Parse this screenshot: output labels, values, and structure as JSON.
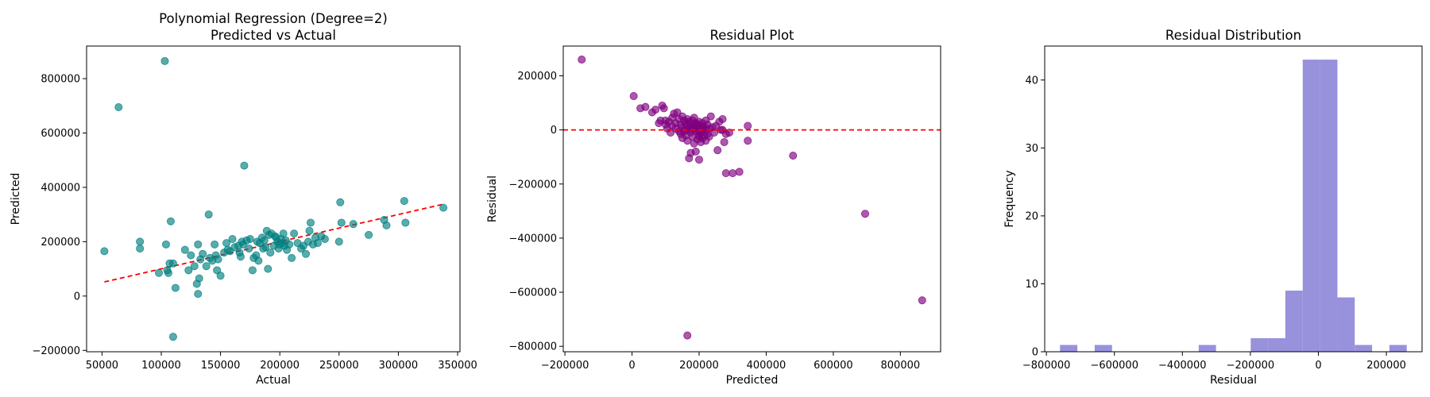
{
  "chart_data": [
    {
      "type": "scatter",
      "title": [
        "Polynomial Regression (Degree=2)",
        "Predicted vs Actual"
      ],
      "xlabel": "Actual",
      "ylabel": "Predicted",
      "xlim": [
        37000,
        352000
      ],
      "ylim": [
        -205000,
        920000
      ],
      "xticks": [
        50000,
        100000,
        150000,
        200000,
        250000,
        300000,
        350000
      ],
      "xtick_labels": [
        "50000",
        "100000",
        "150000",
        "200000",
        "250000",
        "300000",
        "350000"
      ],
      "yticks": [
        -200000,
        0,
        200000,
        400000,
        600000,
        800000
      ],
      "ytick_labels": [
        "−200000",
        "0",
        "200000",
        "400000",
        "600000",
        "800000"
      ],
      "grid": false,
      "colors": {
        "points": "#008080",
        "reference_line": "#ff0000"
      },
      "reference_line": {
        "x": [
          52000,
          337000
        ],
        "y": [
          52000,
          337000
        ]
      },
      "points": {
        "x": [
          52000,
          64000,
          82000,
          82000,
          98000,
          103000,
          104000,
          105000,
          106000,
          107000,
          108000,
          110000,
          110000,
          112000,
          120000,
          123000,
          125000,
          128000,
          130000,
          131000,
          131000,
          132000,
          133000,
          135000,
          138000,
          140000,
          141000,
          143000,
          145000,
          146000,
          147000,
          148000,
          150000,
          153000,
          155000,
          156000,
          158000,
          160000,
          162000,
          165000,
          166000,
          167000,
          168000,
          169000,
          170000,
          172000,
          174000,
          175000,
          177000,
          178000,
          180000,
          181000,
          182000,
          183000,
          185000,
          186000,
          187000,
          188000,
          189000,
          190000,
          191000,
          192000,
          193000,
          195000,
          196000,
          197000,
          198000,
          199000,
          200000,
          201000,
          202000,
          203000,
          204000,
          205000,
          206000,
          208000,
          210000,
          212000,
          215000,
          218000,
          220000,
          222000,
          224000,
          225000,
          226000,
          228000,
          230000,
          232000,
          235000,
          238000,
          250000,
          251000,
          252000,
          262000,
          275000,
          288000,
          290000,
          305000,
          306000,
          338000
        ],
        "y": [
          165000,
          695000,
          200000,
          175000,
          85000,
          865000,
          190000,
          95000,
          85000,
          120000,
          275000,
          -150000,
          120000,
          30000,
          170000,
          95000,
          150000,
          110000,
          45000,
          8000,
          190000,
          65000,
          135000,
          155000,
          110000,
          300000,
          140000,
          130000,
          190000,
          150000,
          95000,
          135000,
          75000,
          160000,
          195000,
          170000,
          165000,
          210000,
          180000,
          185000,
          160000,
          145000,
          200000,
          190000,
          480000,
          205000,
          175000,
          210000,
          95000,
          140000,
          150000,
          200000,
          130000,
          195000,
          215000,
          175000,
          205000,
          180000,
          240000,
          100000,
          225000,
          160000,
          230000,
          185000,
          220000,
          215000,
          200000,
          175000,
          190000,
          210000,
          195000,
          230000,
          185000,
          205000,
          170000,
          190000,
          140000,
          230000,
          195000,
          175000,
          185000,
          155000,
          200000,
          240000,
          270000,
          190000,
          215000,
          195000,
          220000,
          210000,
          200000,
          345000,
          270000,
          265000,
          225000,
          280000,
          260000,
          350000,
          270000,
          325000
        ]
      }
    },
    {
      "type": "scatter",
      "title": "Residual Plot",
      "xlabel": "Predicted",
      "ylabel": "Residual",
      "xlim": [
        -205000,
        920000
      ],
      "ylim": [
        -820000,
        310000
      ],
      "xticks": [
        -200000,
        0,
        200000,
        400000,
        600000,
        800000
      ],
      "xtick_labels": [
        "−200000",
        "0",
        "200000",
        "400000",
        "600000",
        "800000"
      ],
      "yticks": [
        -800000,
        -600000,
        -400000,
        -200000,
        0,
        200000
      ],
      "ytick_labels": [
        "−800000",
        "−600000",
        "−400000",
        "−200000",
        "0",
        "200000"
      ],
      "grid": false,
      "colors": {
        "points": "#800080",
        "zero_line": "#ff0000"
      },
      "zero_line": 0,
      "points": {
        "x": [
          -150000,
          5000,
          25000,
          40000,
          60000,
          70000,
          80000,
          85000,
          90000,
          95000,
          100000,
          100000,
          105000,
          110000,
          115000,
          120000,
          120000,
          125000,
          130000,
          130000,
          135000,
          140000,
          140000,
          145000,
          145000,
          150000,
          150000,
          150000,
          155000,
          155000,
          160000,
          160000,
          160000,
          165000,
          165000,
          165000,
          170000,
          170000,
          170000,
          175000,
          175000,
          175000,
          180000,
          180000,
          180000,
          185000,
          185000,
          185000,
          190000,
          190000,
          190000,
          195000,
          195000,
          195000,
          200000,
          200000,
          200000,
          200000,
          205000,
          205000,
          205000,
          210000,
          210000,
          210000,
          215000,
          215000,
          220000,
          220000,
          220000,
          225000,
          225000,
          230000,
          230000,
          235000,
          240000,
          245000,
          250000,
          255000,
          260000,
          265000,
          270000,
          275000,
          280000,
          290000,
          300000,
          320000,
          345000,
          345000,
          480000,
          695000,
          865000,
          165000,
          185000,
          200000,
          270000,
          280000,
          200000,
          210000,
          190000,
          175000
        ],
        "y": [
          260000,
          125000,
          80000,
          85000,
          65000,
          75000,
          25000,
          35000,
          90000,
          80000,
          20000,
          35000,
          5000,
          30000,
          -10000,
          45000,
          15000,
          60000,
          25000,
          5000,
          65000,
          40000,
          -5000,
          20000,
          -15000,
          50000,
          10000,
          -30000,
          35000,
          -5000,
          25000,
          0,
          -20000,
          40000,
          15000,
          -40000,
          30000,
          5000,
          -105000,
          20000,
          -10000,
          -85000,
          35000,
          10000,
          -25000,
          45000,
          15000,
          -50000,
          25000,
          -5000,
          -80000,
          20000,
          0,
          -35000,
          30000,
          5000,
          -20000,
          -110000,
          15000,
          -10000,
          -45000,
          25000,
          -5000,
          -30000,
          10000,
          -20000,
          35000,
          0,
          -40000,
          20000,
          -15000,
          5000,
          -25000,
          50000,
          10000,
          -10000,
          15000,
          -75000,
          30000,
          0,
          40000,
          -45000,
          -15000,
          -10000,
          -160000,
          -155000,
          15000,
          -40000,
          -95000,
          -310000,
          -630000,
          -760000,
          5000,
          -25000,
          0,
          -160000,
          -5000,
          10000,
          20000,
          0
        ]
      }
    },
    {
      "type": "bar",
      "title": "Residual Distribution",
      "xlabel": "Residual",
      "ylabel": "Frequency",
      "xlim": [
        -805000,
        305000
      ],
      "ylim": [
        0,
        45
      ],
      "xticks": [
        -800000,
        -600000,
        -400000,
        -200000,
        0,
        200000
      ],
      "xtick_labels": [
        "−800000",
        "−600000",
        "−400000",
        "−200000",
        "0",
        "200000"
      ],
      "yticks": [
        0,
        10,
        20,
        30,
        40
      ],
      "ytick_labels": [
        "0",
        "10",
        "20",
        "30",
        "40"
      ],
      "grid": false,
      "colors": {
        "bars": "#9891dc"
      },
      "bins": [
        {
          "start": -760000,
          "end": -709000,
          "count": 1
        },
        {
          "start": -658000,
          "end": -607000,
          "count": 1
        },
        {
          "start": -352000,
          "end": -301000,
          "count": 1
        },
        {
          "start": -199000,
          "end": -148000,
          "count": 2
        },
        {
          "start": -148000,
          "end": -97000,
          "count": 2
        },
        {
          "start": -97000,
          "end": -46000,
          "count": 9
        },
        {
          "start": -46000,
          "end": 5000,
          "count": 43
        },
        {
          "start": 5000,
          "end": 56000,
          "count": 43
        },
        {
          "start": 56000,
          "end": 107000,
          "count": 8
        },
        {
          "start": 107000,
          "end": 158000,
          "count": 1
        },
        {
          "start": 209000,
          "end": 260000,
          "count": 1
        }
      ]
    }
  ]
}
